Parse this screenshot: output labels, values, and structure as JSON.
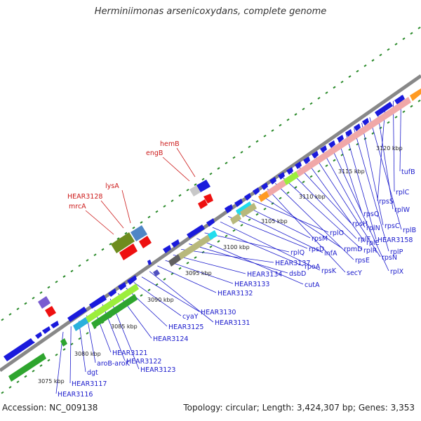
{
  "title": "Herminiimonas arsenicoxydans, complete genome",
  "footer": {
    "accession": "Accession: NC_009138",
    "topology": "Topology: circular; Length: 3,424,307 bp; Genes: 3,353"
  },
  "colors": {
    "backbone": "#8c8c8c",
    "gene_label": "#1a1acc",
    "special_label": "#cc1a1a",
    "tick": "#2a8a2a",
    "leader_line": "#1a1acc"
  },
  "kbp_ticks": [
    "3075 kbp",
    "3080 kbp",
    "3085 kbp",
    "3090 kbp",
    "3095 kbp",
    "3100 kbp",
    "3105 kbp",
    "3110 kbp",
    "3115 kbp",
    "3120 kbp"
  ],
  "labels_below": [
    "HEAR3116",
    "HEAR3117",
    "dgt",
    "aroB-aroK",
    "HEAR3121",
    "HEAR3122",
    "HEAR3123",
    "HEAR3124",
    "HEAR3125",
    "cyaY",
    "HEAR3130",
    "HEAR3131",
    "HEAR3132",
    "HEAR3133",
    "HEAR3134",
    "HEAR3137",
    "dsbD",
    "cutA",
    "rplQ",
    "rpoA",
    "rpsK",
    "rpsD",
    "infA",
    "rpsM",
    "rplO",
    "rpmD",
    "secY",
    "rpsE",
    "rplR",
    "rplF",
    "rpsH",
    "rplE",
    "rpsN",
    "rplN",
    "rplX",
    "rpsQ",
    "HEAR3158",
    "rplP",
    "rpsC",
    "rplB",
    "rplW",
    "rpsS",
    "rplC",
    "tufB"
  ],
  "labels_above": [
    "mrcA",
    "HEAR3128",
    "lysA",
    "engB",
    "hemB"
  ]
}
